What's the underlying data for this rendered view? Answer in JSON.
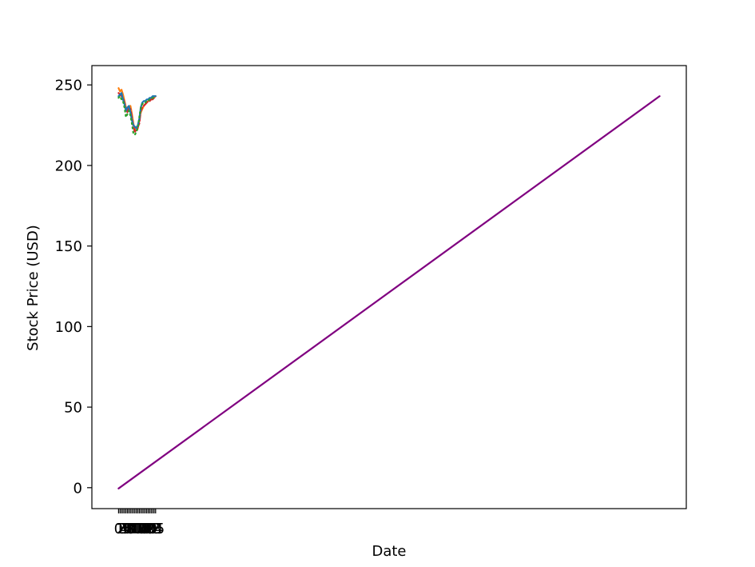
{
  "chart_data": {
    "type": "line",
    "title": "",
    "xlabel": "Date",
    "ylabel": "Stock Price (USD)",
    "ylim": [
      -13,
      262
    ],
    "grid": false,
    "legend": "none",
    "yticks": [
      0,
      50,
      100,
      150,
      200,
      250
    ],
    "xticks": [
      "0",
      "1",
      "2",
      "3",
      "4",
      "5",
      "6",
      "7",
      "8",
      "9",
      "10",
      "11",
      "12",
      "13",
      "14",
      "15",
      "16",
      "17",
      "18",
      "19",
      "20",
      "21",
      "22",
      "23",
      "24",
      "25"
    ],
    "x": [
      0,
      1,
      2,
      3,
      4,
      5,
      6,
      7,
      8,
      9,
      10,
      11,
      12,
      13,
      14,
      15,
      16,
      17,
      18,
      19,
      20,
      21,
      22,
      23,
      24,
      25
    ],
    "series": [
      {
        "color": "#ff7f0e",
        "style": "solid",
        "values": [
          248,
          246,
          247,
          244,
          240,
          236,
          234,
          235,
          237,
          232,
          226,
          222,
          224,
          223,
          228,
          233,
          235,
          237,
          238,
          239,
          240,
          241,
          241,
          242,
          242,
          243
        ]
      },
      {
        "color": "#d62728",
        "style": "dashed",
        "values": [
          245,
          244,
          243,
          242,
          239,
          235,
          233,
          236,
          235,
          230,
          224,
          221,
          222,
          224,
          226,
          234,
          236,
          237,
          238,
          239,
          240,
          240,
          241,
          241,
          242,
          242
        ]
      },
      {
        "color": "#1f77b4",
        "style": "solid",
        "values": [
          243,
          244,
          245,
          241,
          238,
          234,
          236,
          237,
          233,
          228,
          225,
          224,
          223,
          225,
          229,
          236,
          239,
          240,
          240,
          241,
          241,
          242,
          242,
          243,
          243,
          243
        ]
      },
      {
        "color": "#2ca02c",
        "style": "dotted",
        "values": [
          242,
          243,
          241,
          240,
          236,
          230,
          232,
          234,
          231,
          226,
          220,
          219,
          221,
          223,
          230,
          236,
          238,
          239,
          239,
          240,
          240,
          241,
          241,
          242,
          242,
          242
        ]
      },
      {
        "color": "#800080",
        "style": "solid",
        "x": [
          0,
          365
        ],
        "values": [
          -0.5,
          243
        ]
      }
    ]
  }
}
